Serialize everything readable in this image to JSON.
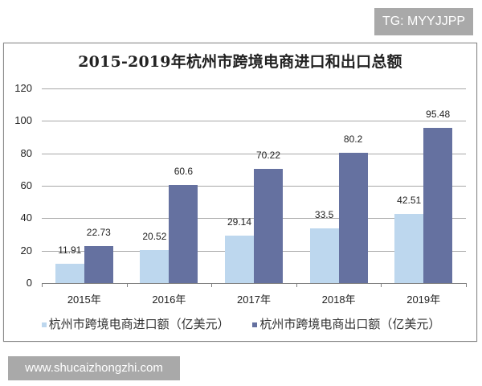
{
  "watermark_top": "TG: MYYJJPP",
  "watermark_bottom": "www.shucaizhongzhi.com",
  "colors": {
    "import": "#bdd7ee",
    "export": "#6571a0",
    "grid": "#a8a8a8"
  },
  "chart_data": {
    "type": "bar",
    "title": "2015-2019年杭州市跨境电商进口和出口总额",
    "categories": [
      "2015年",
      "2016年",
      "2017年",
      "2018年",
      "2019年"
    ],
    "series": [
      {
        "name": "杭州市跨境电商进口额（亿美元）",
        "values": [
          11.91,
          20.52,
          29.14,
          33.5,
          42.51
        ],
        "color": "#bdd7ee"
      },
      {
        "name": "杭州市跨境电商出口额（亿美元）",
        "values": [
          22.73,
          60.6,
          70.22,
          80.2,
          95.48
        ],
        "color": "#6571a0"
      }
    ],
    "data_labels": {
      "import": [
        "11.91",
        "20.52",
        "29.14",
        "33.5",
        "42.51"
      ],
      "export": [
        "22.73",
        "60.6",
        "70.22",
        "80.2",
        "95.48"
      ]
    },
    "xlabel": "",
    "ylabel": "",
    "ylim": [
      0,
      120
    ],
    "yticks": [
      "0",
      "20",
      "40",
      "60",
      "80",
      "100",
      "120"
    ],
    "grid": true,
    "legend_position": "bottom"
  }
}
